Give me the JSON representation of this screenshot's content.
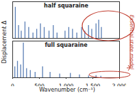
{
  "chart_data": [
    {
      "type": "bar",
      "title": "half squaraine",
      "y_label": "Displacement Δ",
      "annotation": "Essential state model",
      "x": [
        50,
        110,
        160,
        230,
        300,
        380,
        450,
        520,
        590,
        680,
        760,
        830,
        980,
        1050,
        1120,
        1200,
        1290,
        1350,
        1420,
        1480,
        1560,
        1610,
        1660
      ],
      "values": [
        0.85,
        0.35,
        0.2,
        0.45,
        0.3,
        0.15,
        0.25,
        0.4,
        0.3,
        0.2,
        0.35,
        0.15,
        0.2,
        0.3,
        0.25,
        0.15,
        0.3,
        0.2,
        0.35,
        0.25,
        0.4,
        0.5,
        0.3
      ],
      "color": "#5b7fb5",
      "xlim": [
        0,
        2000
      ],
      "xticks": [
        0,
        500,
        1000,
        1500,
        2000
      ],
      "ylim": [
        0,
        1
      ],
      "yticks": [],
      "tick_labels": false
    },
    {
      "type": "bar",
      "title": "full squaraine",
      "x_label": "Wavenumber (cm⁻¹)",
      "x": [
        40,
        90,
        150,
        200,
        260,
        330,
        420,
        560,
        700,
        880,
        1080,
        1250,
        1420,
        1560,
        1650
      ],
      "values": [
        0.3,
        0.45,
        0.35,
        0.95,
        0.25,
        0.2,
        0.15,
        0.3,
        0.15,
        0.1,
        0.12,
        0.08,
        0.05,
        0.06,
        0.04
      ],
      "color": "#5b7fb5",
      "xlim": [
        0,
        2000
      ],
      "xticks": [
        0,
        500,
        1000,
        1500,
        2000
      ],
      "ylim": [
        0,
        1
      ],
      "yticks": [],
      "tick_labels": "x"
    }
  ]
}
